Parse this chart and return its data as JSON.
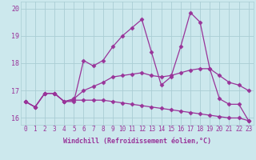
{
  "xlabel": "Windchill (Refroidissement éolien,°C)",
  "bg_color": "#cce8ed",
  "grid_color": "#aacdd4",
  "line_color": "#993399",
  "xlim": [
    -0.5,
    23.5
  ],
  "ylim": [
    15.75,
    20.25
  ],
  "xticks": [
    0,
    1,
    2,
    3,
    4,
    5,
    6,
    7,
    8,
    9,
    10,
    11,
    12,
    13,
    14,
    15,
    16,
    17,
    18,
    19,
    20,
    21,
    22,
    23
  ],
  "yticks": [
    16,
    17,
    18,
    19,
    20
  ],
  "series": [
    [
      16.6,
      16.4,
      16.9,
      16.9,
      16.6,
      16.6,
      18.1,
      17.9,
      18.1,
      18.6,
      19.0,
      19.3,
      19.6,
      18.4,
      17.2,
      17.5,
      18.6,
      19.85,
      19.5,
      17.8,
      16.7,
      16.5,
      16.5,
      15.9
    ],
    [
      16.6,
      16.4,
      16.9,
      16.9,
      16.6,
      16.7,
      17.0,
      17.15,
      17.3,
      17.5,
      17.55,
      17.6,
      17.65,
      17.55,
      17.5,
      17.55,
      17.65,
      17.75,
      17.8,
      17.8,
      17.55,
      17.3,
      17.2,
      17.0
    ],
    [
      16.6,
      16.4,
      16.9,
      16.9,
      16.6,
      16.65,
      16.65,
      16.65,
      16.65,
      16.6,
      16.55,
      16.5,
      16.45,
      16.4,
      16.35,
      16.3,
      16.25,
      16.2,
      16.15,
      16.1,
      16.05,
      16.0,
      16.0,
      15.9
    ]
  ],
  "marker": "D",
  "markersize": 2.5,
  "linewidth": 0.9,
  "tick_fontsize": 5.5,
  "xlabel_fontsize": 6.0
}
